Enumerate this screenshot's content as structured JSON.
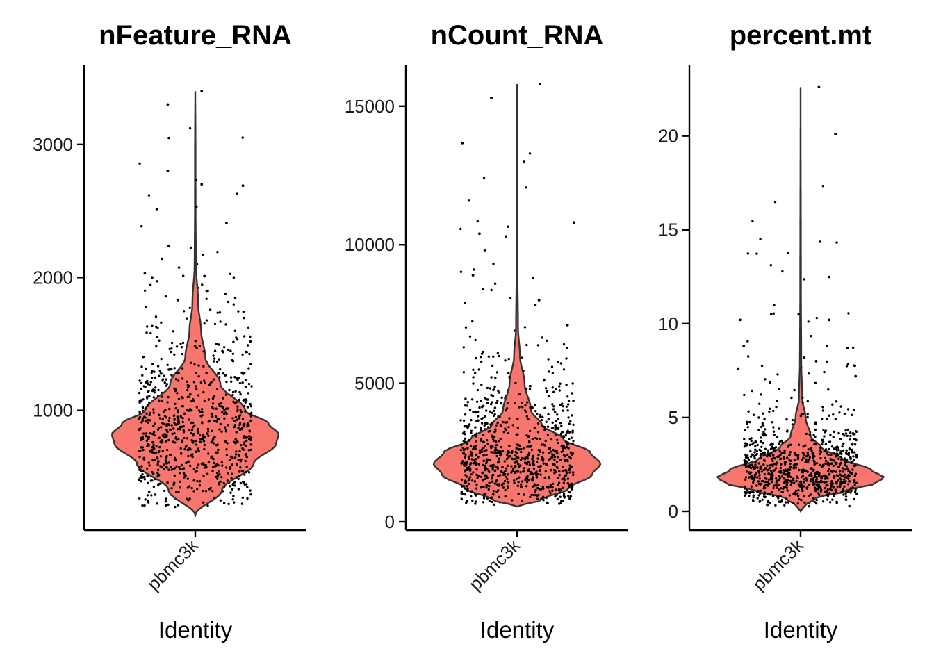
{
  "chart_data": [
    {
      "type": "violin",
      "title": "nFeature_RNA",
      "xlabel": "Identity",
      "ylabel": "",
      "category": "pbmc3k",
      "ylim": [
        100,
        3600
      ],
      "yticks": [
        1000,
        2000,
        3000
      ],
      "fill_color": "#F8766D",
      "outline_color": "#333333",
      "point_color": "#000000",
      "density": [
        [
          212,
          0
        ],
        [
          400,
          0.32
        ],
        [
          600,
          0.7
        ],
        [
          750,
          0.97
        ],
        [
          820,
          1.0
        ],
        [
          900,
          0.88
        ],
        [
          1000,
          0.6
        ],
        [
          1200,
          0.3
        ],
        [
          1400,
          0.12
        ],
        [
          1600,
          0.07
        ],
        [
          1800,
          0.035
        ],
        [
          2100,
          0.008
        ],
        [
          2500,
          0.004
        ],
        [
          3000,
          0.003
        ],
        [
          3400,
          0
        ]
      ],
      "data_max": 3400,
      "outliers": [
        [
          -0.3,
          3300
        ],
        [
          -0.3,
          2800
        ],
        [
          0.07,
          3400
        ],
        [
          0.07,
          2700
        ],
        [
          0.52,
          2690
        ],
        [
          0.34,
          2410
        ],
        [
          0.42,
          2000
        ],
        [
          -0.55,
          2030
        ],
        [
          -0.47,
          2000
        ],
        [
          0.1,
          2010
        ]
      ]
    },
    {
      "type": "violin",
      "title": "nCount_RNA",
      "xlabel": "Identity",
      "ylabel": "",
      "category": "pbmc3k",
      "ylim": [
        -300,
        16500
      ],
      "yticks": [
        0,
        5000,
        10000,
        15000
      ],
      "fill_color": "#F8766D",
      "outline_color": "#333333",
      "point_color": "#000000",
      "density": [
        [
          550,
          0
        ],
        [
          800,
          0.3
        ],
        [
          1200,
          0.62
        ],
        [
          1700,
          0.9
        ],
        [
          2100,
          1.0
        ],
        [
          2500,
          0.88
        ],
        [
          3000,
          0.55
        ],
        [
          3500,
          0.3
        ],
        [
          4000,
          0.17
        ],
        [
          5000,
          0.09
        ],
        [
          6000,
          0.035
        ],
        [
          7000,
          0.012
        ],
        [
          9000,
          0.006
        ],
        [
          12000,
          0.004
        ],
        [
          15800,
          0
        ]
      ],
      "data_max": 15800,
      "outliers": [
        [
          -0.28,
          15300
        ],
        [
          0.25,
          15800
        ],
        [
          -0.41,
          10400
        ],
        [
          -0.12,
          10300
        ],
        [
          0.62,
          10800
        ],
        [
          -0.48,
          8900
        ],
        [
          -0.57,
          7900
        ],
        [
          -0.37,
          8400
        ],
        [
          0.24,
          8000
        ],
        [
          0.55,
          7100
        ]
      ]
    },
    {
      "type": "violin",
      "title": "percent.mt",
      "xlabel": "Identity",
      "ylabel": "",
      "category": "pbmc3k",
      "ylim": [
        -1,
        23.8
      ],
      "yticks": [
        0,
        5,
        10,
        15,
        20
      ],
      "fill_color": "#F8766D",
      "outline_color": "#333333",
      "point_color": "#000000",
      "density": [
        [
          0,
          0
        ],
        [
          0.3,
          0.05
        ],
        [
          0.7,
          0.18
        ],
        [
          1.1,
          0.55
        ],
        [
          1.5,
          0.9
        ],
        [
          1.8,
          1.0
        ],
        [
          2.2,
          0.85
        ],
        [
          2.8,
          0.5
        ],
        [
          3.4,
          0.25
        ],
        [
          4.0,
          0.12
        ],
        [
          5.0,
          0.06
        ],
        [
          6.0,
          0.02
        ],
        [
          8.0,
          0.008
        ],
        [
          12.0,
          0.004
        ],
        [
          22.6,
          0
        ]
      ],
      "data_max": 22.6,
      "outliers": [
        [
          0.2,
          22.6
        ],
        [
          0.38,
          20.1
        ],
        [
          -0.66,
          10.2
        ],
        [
          -0.62,
          8.8
        ],
        [
          -0.68,
          7.6
        ],
        [
          -0.32,
          10.5
        ],
        [
          -0.02,
          10.5
        ],
        [
          0.31,
          10.2
        ],
        [
          0.17,
          8.0
        ],
        [
          0.6,
          7.2
        ]
      ]
    }
  ]
}
